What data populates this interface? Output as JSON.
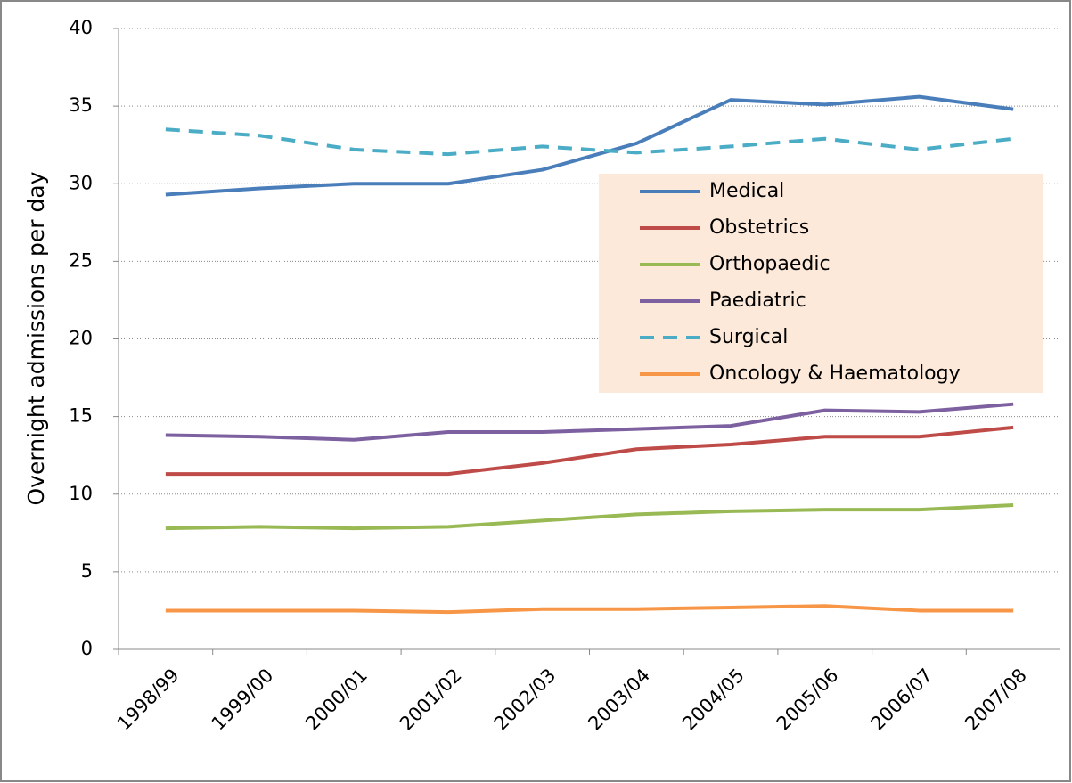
{
  "chart_data": {
    "type": "line",
    "y_label": "Overnight admissions per day",
    "categories": [
      "1998/99",
      "1999/00",
      "2000/01",
      "2001/02",
      "2002/03",
      "2003/04",
      "2004/05",
      "2005/06",
      "2006/07",
      "2007/08"
    ],
    "series": [
      {
        "name": "Medical",
        "color": "#4a7ebb",
        "dashed": false,
        "values": [
          29.3,
          29.7,
          30.0,
          30.0,
          30.9,
          32.6,
          35.4,
          35.1,
          35.6,
          34.8
        ]
      },
      {
        "name": "Obstetrics",
        "color": "#be4b48",
        "dashed": false,
        "values": [
          11.3,
          11.3,
          11.3,
          11.3,
          12.0,
          12.9,
          13.2,
          13.7,
          13.7,
          14.3
        ]
      },
      {
        "name": "Orthopaedic",
        "color": "#98b954",
        "dashed": false,
        "values": [
          7.8,
          7.9,
          7.8,
          7.9,
          8.3,
          8.7,
          8.9,
          9.0,
          9.0,
          9.3
        ]
      },
      {
        "name": "Paediatric",
        "color": "#7d60a0",
        "dashed": false,
        "values": [
          13.8,
          13.7,
          13.5,
          14.0,
          14.0,
          14.2,
          14.4,
          15.4,
          15.3,
          15.8
        ]
      },
      {
        "name": "Surgical",
        "color": "#4bacc6",
        "dashed": true,
        "values": [
          33.5,
          33.1,
          32.2,
          31.9,
          32.4,
          32.0,
          32.4,
          32.9,
          32.2,
          32.9
        ]
      },
      {
        "name": "Oncology & Haematology",
        "color": "#f79646",
        "dashed": false,
        "values": [
          2.5,
          2.5,
          2.5,
          2.4,
          2.6,
          2.6,
          2.7,
          2.8,
          2.5,
          2.5
        ]
      }
    ],
    "ylim": [
      0,
      40
    ],
    "yticks": [
      0,
      5,
      10,
      15,
      20,
      25,
      30,
      35,
      40
    ],
    "grid": true
  }
}
